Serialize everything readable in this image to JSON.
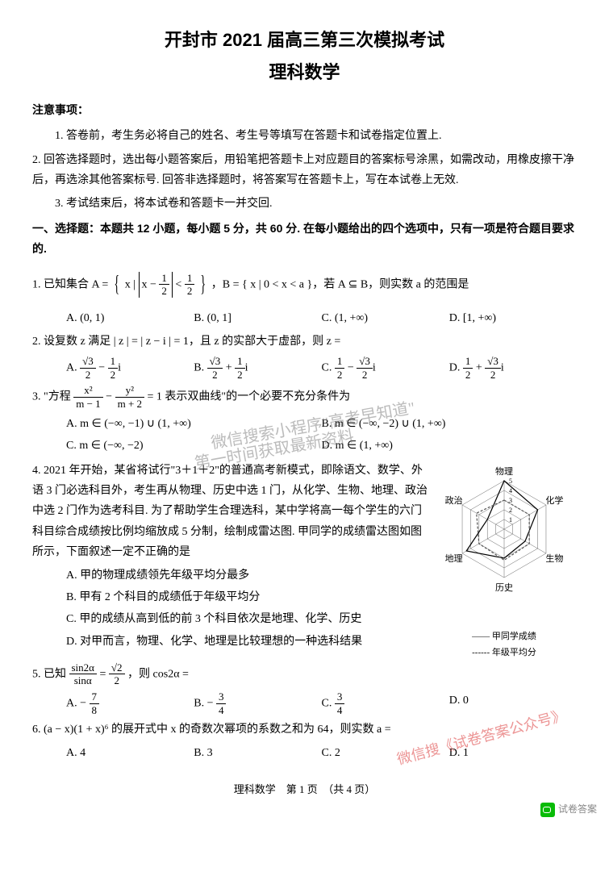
{
  "title_line1": "开封市 2021 届高三第三次模拟考试",
  "title_line2": "理科数学",
  "notice_head": "注意事项：",
  "notice1": "1. 答卷前，考生务必将自己的姓名、考生号等填写在答题卡和试卷指定位置上.",
  "notice2": "2. 回答选择题时，选出每小题答案后，用铅笔把答题卡上对应题目的答案标号涂黑，如需改动，用橡皮擦干净后，再选涂其他答案标号. 回答非选择题时，将答案写在答题卡上，写在本试卷上无效.",
  "notice3": "3. 考试结束后，将本试卷和答题卡一并交回.",
  "section1": "一、选择题：本题共 12 小题，每小题 5 分，共 60 分. 在每小题给出的四个选项中，只有一项是符合题目要求的.",
  "q1_stem_a": "1. 已知集合 A = ",
  "q1_set_inner": "x |",
  "q1_abs_inner_a": "x − ",
  "q1_lt": " < ",
  "q1_stem_b": "，B = { x | 0 < x < a }，若 A ⊆ B，则实数 a 的范围是",
  "q1A": "A. (0, 1)",
  "q1B": "B. (0, 1]",
  "q1C": "C. (1, +∞)",
  "q1D": "D. [1, +∞)",
  "q2": "2. 设复数 z 满足 | z | = | z − i | = 1，且 z 的实部大于虚部，则 z =",
  "q2A_pre": "A. ",
  "q2B_pre": "B. ",
  "q2C_pre": "C. ",
  "q2D_pre": "D. ",
  "sqrt3": "√3",
  "half_num": "1",
  "two": "2",
  "minus": " − ",
  "plus": " + ",
  "imag": "i",
  "q3_a": "3. \"方程 ",
  "q3_mid": " − ",
  "q3_b": " = 1 表示双曲线\"的一个必要不充分条件为",
  "x2": "x²",
  "y2": "y²",
  "m_1": "m − 1",
  "m_2": "m + 2",
  "q3A": "A. m ∈ (−∞, −1) ∪ (1, +∞)",
  "q3B": "B. m ∈ (−∞, −2) ∪ (1, +∞)",
  "q3C": "C. m ∈ (−∞, −2)",
  "q3D": "D. m ∈ (1, +∞)",
  "q4_a": "4. 2021 年开始，某省将试行\"3＋1＋2\"的普通高考新模式，即除语文、数学、外语 3 门必选科目外，考生再从物理、历史中选 1 门，从化学、生物、地理、政治中选 2 门作为选考科目. 为了帮助学生合理选科，某中学将高一每个学生的六门科目综合成绩按比例均缩放成 5 分制，绘制成雷达图. 甲同学的成绩雷达图如图所示，下面叙述一定不正确的是",
  "q4A": "A. 甲的物理成绩领先年级平均分最多",
  "q4B": "B. 甲有 2 个科目的成绩低于年级平均分",
  "q4C": "C. 甲的成绩从高到低的前 3 个科目依次是地理、化学、历史",
  "q4D": "D. 对甲而言，物理、化学、地理是比较理想的一种选科结果",
  "radar": {
    "labels": [
      "物理",
      "化学",
      "生物",
      "历史",
      "地理",
      "政治"
    ],
    "max": 5,
    "rings": [
      1,
      2,
      3,
      4,
      5
    ],
    "series": [
      {
        "name": "甲同学成绩",
        "values": [
          5,
          4,
          2.5,
          3,
          4.5,
          2
        ],
        "color": "#000000",
        "dash": "0"
      },
      {
        "name": "年级平均分",
        "values": [
          3,
          3,
          3,
          3.2,
          3,
          3.3
        ],
        "color": "#555555",
        "dash": "3,2"
      }
    ],
    "legend1": "—— 甲同学成绩",
    "legend2": "------ 年级平均分",
    "bg": "#ffffff",
    "grid_color": "#666666",
    "label_fontsize": 11
  },
  "q5_a": "5. 已知 ",
  "q5_eq": " = ",
  "q5_b": "，则 cos2α =",
  "sin2a": "sin2α",
  "sina": "sinα",
  "sqrt2": "√2",
  "q5A": "A. − ",
  "q5A_n": "7",
  "q5A_d": "8",
  "q5B": "B. − ",
  "q5B_n": "3",
  "q5B_d": "4",
  "q5C": "C. ",
  "q5C_n": "3",
  "q5C_d": "4",
  "q5D": "D. 0",
  "q6": "6. (a − x)(1 + x)⁶ 的展开式中 x 的奇数次幂项的系数之和为 64，则实数 a =",
  "q6A": "A. 4",
  "q6B": "B. 3",
  "q6C": "C. 2",
  "q6D": "D. 1",
  "footer": "理科数学　第 1 页　（共 4 页）",
  "wm1": "微信搜索小程序\"高考早知道\"",
  "wm1b": "第一时间获取最新资料",
  "wm2": "微信搜《试卷答案公众号》",
  "wx_label": "试卷答案"
}
